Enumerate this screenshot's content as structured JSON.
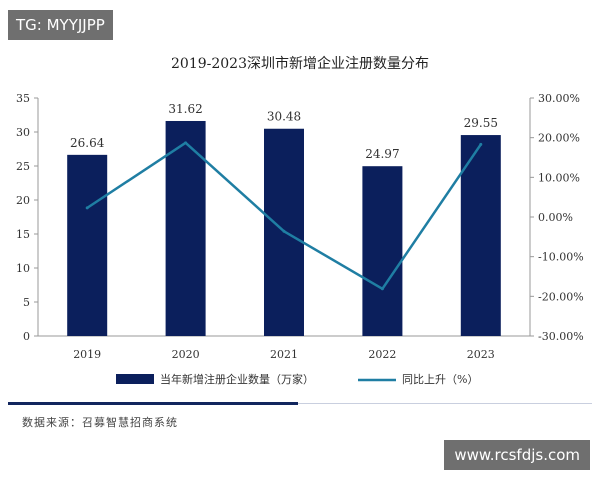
{
  "watermarks": {
    "top": "TG: MYYJJPP",
    "bottom": "www.rcsfdjs.com"
  },
  "source": "数据来源：召募智慧招商系统",
  "colors": {
    "bar": "#0b1f5c",
    "line": "#1f7ea3",
    "axis": "#999999"
  },
  "chart_data": {
    "type": "bar",
    "title": "2019-2023深圳市新增企业注册数量分布",
    "categories": [
      "2019",
      "2020",
      "2021",
      "2022",
      "2023"
    ],
    "y_left": {
      "range": [
        0,
        35
      ],
      "ticks": [
        "0",
        "5",
        "10",
        "15",
        "20",
        "25",
        "30",
        "35"
      ]
    },
    "y_right": {
      "range": [
        -30,
        30
      ],
      "ticks": [
        "-30.00%",
        "-20.00%",
        "-10.00%",
        "0.00%",
        "10.00%",
        "20.00%",
        "30.00%"
      ]
    },
    "series": [
      {
        "name": "当年新增注册企业数量（万家）",
        "type": "bar",
        "axis": "left",
        "values": [
          26.64,
          31.62,
          30.48,
          24.97,
          29.55
        ],
        "labels": [
          "26.64",
          "31.62",
          "30.48",
          "24.97",
          "29.55"
        ]
      },
      {
        "name": "同比上升（%）",
        "type": "line",
        "axis": "right",
        "values": [
          2.3,
          18.7,
          -3.6,
          -18.1,
          18.3
        ]
      }
    ],
    "legend_position": "bottom",
    "grid": false
  }
}
